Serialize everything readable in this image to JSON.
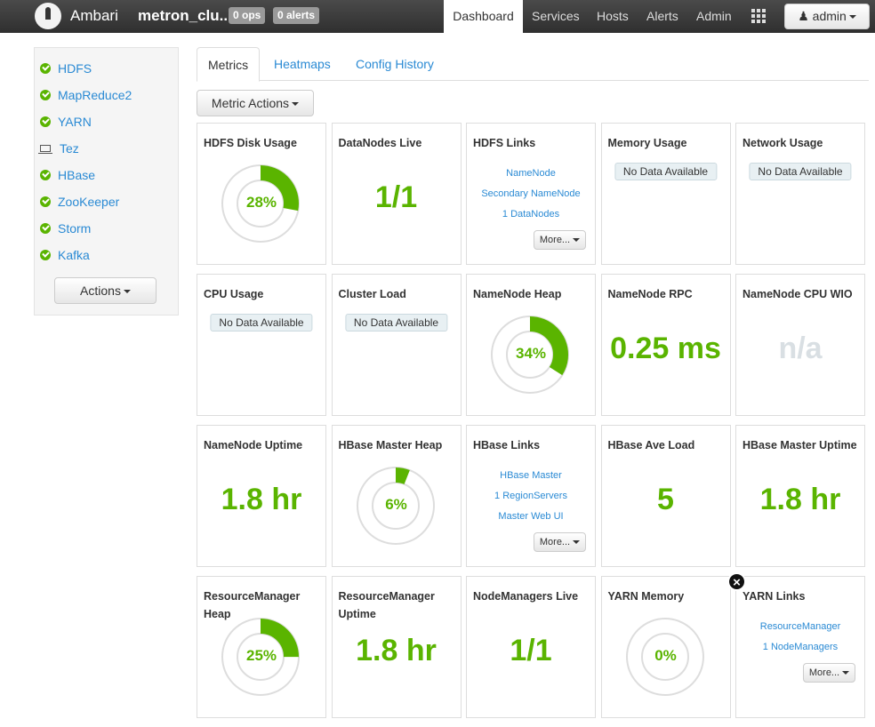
{
  "header": {
    "brand": "Ambari",
    "cluster": "metron_clu...",
    "ops_badge": "0 ops",
    "alerts_badge": "0 alerts",
    "nav": [
      "Dashboard",
      "Services",
      "Hosts",
      "Alerts",
      "Admin"
    ],
    "user": "admin"
  },
  "sidebar": {
    "services": [
      {
        "name": "HDFS",
        "status": "ok"
      },
      {
        "name": "MapReduce2",
        "status": "ok"
      },
      {
        "name": "YARN",
        "status": "ok"
      },
      {
        "name": "Tez",
        "status": "client"
      },
      {
        "name": "HBase",
        "status": "ok"
      },
      {
        "name": "ZooKeeper",
        "status": "ok"
      },
      {
        "name": "Storm",
        "status": "ok"
      },
      {
        "name": "Kafka",
        "status": "ok"
      }
    ],
    "actions": "Actions"
  },
  "tabs": [
    "Metrics",
    "Heatmaps",
    "Config History"
  ],
  "metric_actions": "Metric Actions",
  "colors": {
    "green": "#5ab400",
    "link": "#2a8ad4"
  },
  "widgets": [
    {
      "title": "HDFS Disk Usage",
      "type": "donut",
      "percent": 28,
      "label": "28%"
    },
    {
      "title": "DataNodes Live",
      "type": "value",
      "value": "1/1"
    },
    {
      "title": "HDFS Links",
      "type": "links",
      "links": [
        "NameNode",
        "Secondary NameNode",
        "1 DataNodes"
      ],
      "more": "More..."
    },
    {
      "title": "Memory Usage",
      "type": "nodata",
      "value": "No Data Available"
    },
    {
      "title": "Network Usage",
      "type": "nodata",
      "value": "No Data Available"
    },
    {
      "title": "CPU Usage",
      "type": "nodata",
      "value": "No Data Available"
    },
    {
      "title": "Cluster Load",
      "type": "nodata",
      "value": "No Data Available"
    },
    {
      "title": "NameNode Heap",
      "type": "donut",
      "percent": 34,
      "label": "34%"
    },
    {
      "title": "NameNode RPC",
      "type": "value",
      "value": "0.25 ms"
    },
    {
      "title": "NameNode CPU WIO",
      "type": "na",
      "value": "n/a"
    },
    {
      "title": "NameNode Uptime",
      "type": "value",
      "value": "1.8 hr"
    },
    {
      "title": "HBase Master Heap",
      "type": "donut",
      "percent": 6,
      "label": "6%"
    },
    {
      "title": "HBase Links",
      "type": "links",
      "links": [
        "HBase Master",
        "1 RegionServers",
        "Master Web UI"
      ],
      "more": "More..."
    },
    {
      "title": "HBase Ave Load",
      "type": "value",
      "value": "5"
    },
    {
      "title": "HBase Master Uptime",
      "type": "value",
      "value": "1.8 hr"
    },
    {
      "title": "ResourceManager Heap",
      "type": "donut",
      "percent": 25,
      "label": "25%"
    },
    {
      "title": "ResourceManager Uptime",
      "type": "value",
      "value": "1.8 hr"
    },
    {
      "title": "NodeManagers Live",
      "type": "value",
      "value": "1/1"
    },
    {
      "title": "YARN Memory",
      "type": "donut",
      "percent": 0,
      "label": "0%"
    },
    {
      "title": "YARN Links",
      "type": "links",
      "links": [
        "ResourceManager",
        "1 NodeManagers"
      ],
      "more": "More..."
    }
  ]
}
